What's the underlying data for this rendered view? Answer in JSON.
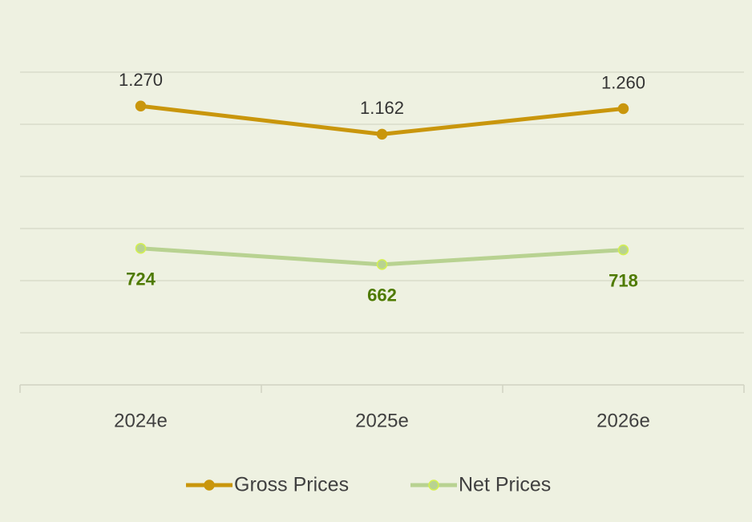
{
  "chart_data": {
    "type": "line",
    "categories": [
      "2024e",
      "2025e",
      "2026e"
    ],
    "series": [
      {
        "name": "Gross Prices",
        "color": "#c9960c",
        "values": [
          1270,
          1162,
          1260
        ],
        "value_labels": [
          "1.270",
          "1.162",
          "1.260"
        ]
      },
      {
        "name": "Net Prices",
        "color": "#b8d291",
        "values": [
          724,
          662,
          718
        ],
        "value_labels": [
          "724",
          "662",
          "718"
        ]
      }
    ],
    "ylim": [
      200,
      1400
    ],
    "yticks": [
      200,
      400,
      600,
      800,
      1000,
      1200,
      1400
    ],
    "grid": true,
    "legend": "bottom"
  }
}
